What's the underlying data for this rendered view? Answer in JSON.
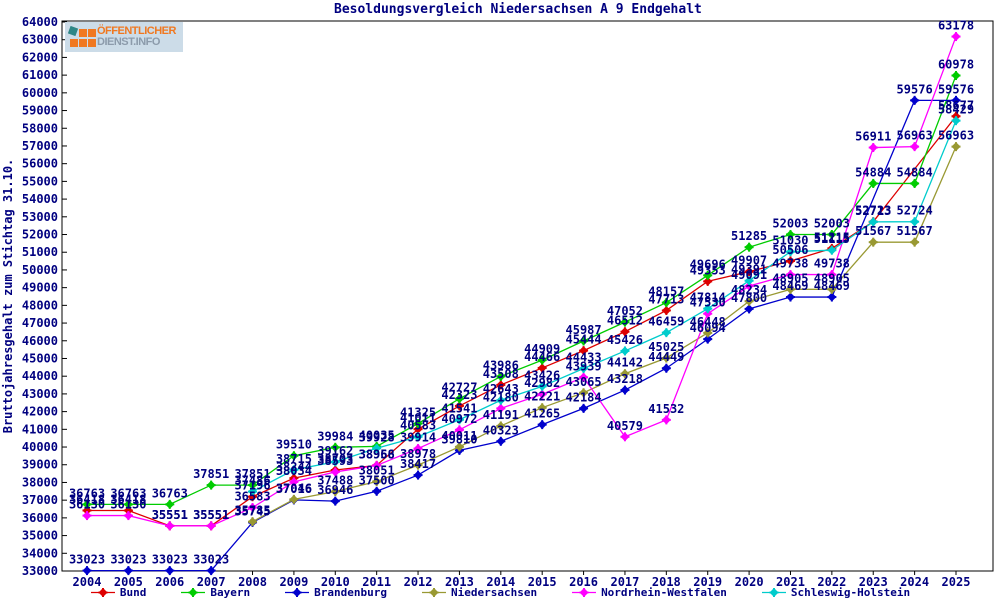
{
  "ui": {
    "title": "Besoldungsvergleich Niedersachsen A 9 Endgehalt",
    "logo_line1": "ÖFFENTLICHER",
    "logo_line2": "DIENST.INFO",
    "text_color": "#000080",
    "frame_color": "#000000",
    "background": "#ffffff",
    "logo_colors": {
      "background": "#ccdce8",
      "orange": "#f07820",
      "gray": "#8c9bab",
      "teal": "#2e8686"
    }
  },
  "chart_data": {
    "type": "line",
    "title": "Besoldungsvergleich Niedersachsen A 9 Endgehalt",
    "ylabel": "Bruttojahresgehalt zum Stichtag 31.10.",
    "xlabel": "",
    "ylim": [
      33000,
      64000
    ],
    "ytick_step": 1000,
    "grid": false,
    "legend_position": "bottom",
    "categories": [
      2004,
      2005,
      2006,
      2007,
      2008,
      2009,
      2010,
      2011,
      2012,
      2013,
      2014,
      2015,
      2016,
      2017,
      2018,
      2019,
      2020,
      2021,
      2022,
      2023,
      2024,
      2025
    ],
    "series": [
      {
        "name": "Bund",
        "color": "#dd0000",
        "values": [
          36418,
          36418,
          35551,
          35551,
          37196,
          38244,
          38703,
          38966,
          41011,
          42323,
          43508,
          44466,
          45444,
          46512,
          47713,
          49353,
          49907,
          50506,
          51215,
          52723,
          null,
          58677
        ]
      },
      {
        "name": "Bayern",
        "color": "#00cc00",
        "values": [
          36763,
          36763,
          36763,
          37851,
          37851,
          39510,
          39984,
          40035,
          41325,
          42727,
          43986,
          44909,
          45987,
          47052,
          48157,
          49696,
          51285,
          52003,
          52003,
          54884,
          54884,
          60978
        ]
      },
      {
        "name": "Brandenburg",
        "color": "#0000cc",
        "values": [
          33023,
          33023,
          33023,
          33023,
          35745,
          37016,
          36946,
          37500,
          38417,
          39810,
          40323,
          41265,
          42184,
          43218,
          44449,
          46094,
          47800,
          48469,
          48469,
          null,
          59576,
          59576
        ]
      },
      {
        "name": "Niedersachsen",
        "color": "#999933",
        "values": [
          null,
          null,
          null,
          null,
          35785,
          37046,
          37488,
          38051,
          38978,
          40011,
          41191,
          42221,
          43065,
          44142,
          45025,
          46448,
          48234,
          48905,
          48905,
          51567,
          51567,
          56963
        ]
      },
      {
        "name": "Nordrhein-Westfalen",
        "color": "#ff00ff",
        "values": [
          36130,
          36130,
          35551,
          35551,
          36583,
          38034,
          38593,
          38958,
          39914,
          40972,
          42180,
          42982,
          43939,
          40579,
          41532,
          47530,
          49091,
          49738,
          49738,
          56911,
          56963,
          63178
        ]
      },
      {
        "name": "Schleswig-Holstein",
        "color": "#00cccc",
        "values": [
          null,
          null,
          null,
          null,
          37486,
          38715,
          39162,
          39928,
          40583,
          41541,
          42643,
          43426,
          44433,
          45426,
          46459,
          47814,
          49391,
          51030,
          51115,
          52713,
          52724,
          58429
        ]
      }
    ]
  }
}
